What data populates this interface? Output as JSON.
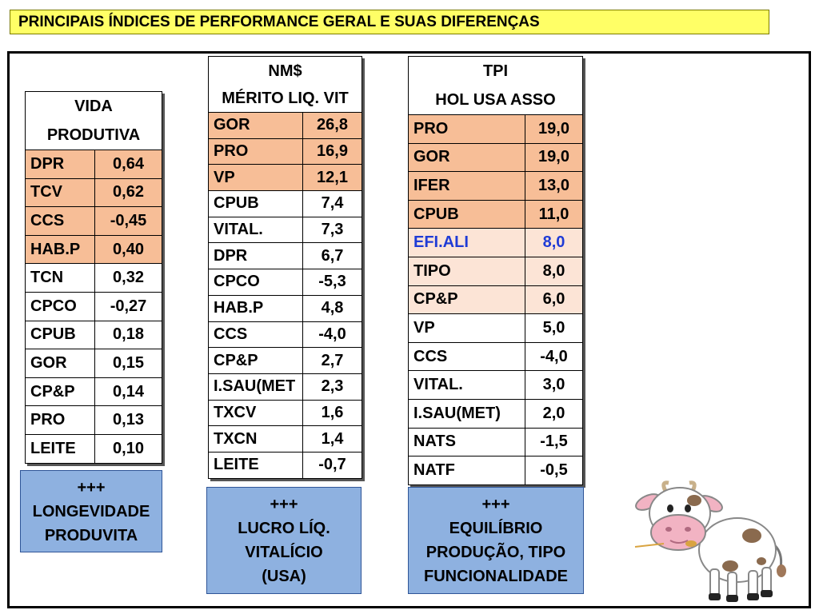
{
  "title": "PRINCIPAIS ÍNDICES DE PERFORMANCE GERAL E SUAS DIFERENÇAS",
  "tables": [
    {
      "header": [
        "VIDA",
        "PRODUTIVA"
      ],
      "rows": [
        {
          "label": "DPR",
          "value": "0,64",
          "highlight": "orange"
        },
        {
          "label": "TCV",
          "value": "0,62",
          "highlight": "orange"
        },
        {
          "label": "CCS",
          "value": "-0,45",
          "highlight": "orange"
        },
        {
          "label": "HAB.P",
          "value": "0,40",
          "highlight": "orange"
        },
        {
          "label": "TCN",
          "value": "0,32"
        },
        {
          "label": "CPCO",
          "value": "-0,27"
        },
        {
          "label": "CPUB",
          "value": "0,18"
        },
        {
          "label": "GOR",
          "value": "0,15"
        },
        {
          "label": "CP&P",
          "value": "0,14"
        },
        {
          "label": "PRO",
          "value": "0,13"
        },
        {
          "label": "LEITE",
          "value": "0,10"
        }
      ],
      "caption": [
        "+++",
        "LONGEVIDADE",
        "PRODUVITA"
      ]
    },
    {
      "header": [
        "NM$",
        "MÉRITO LIQ. VIT"
      ],
      "rows": [
        {
          "label": "GOR",
          "value": "26,8",
          "highlight": "orange"
        },
        {
          "label": "PRO",
          "value": "16,9",
          "highlight": "orange"
        },
        {
          "label": "VP",
          "value": "12,1",
          "highlight": "orange"
        },
        {
          "label": "CPUB",
          "value": "7,4"
        },
        {
          "label": "VITAL.",
          "value": "7,3"
        },
        {
          "label": "DPR",
          "value": "6,7"
        },
        {
          "label": "CPCO",
          "value": "-5,3"
        },
        {
          "label": "HAB.P",
          "value": "4,8"
        },
        {
          "label": "CCS",
          "value": "-4,0"
        },
        {
          "label": "CP&P",
          "value": "2,7"
        },
        {
          "label": "I.SAU(MET",
          "value": "2,3"
        },
        {
          "label": "TXCV",
          "value": "1,6"
        },
        {
          "label": "TXCN",
          "value": "1,4"
        },
        {
          "label": "LEITE",
          "value": "-0,7"
        }
      ],
      "caption": [
        "+++",
        "LUCRO LÍQ.",
        "VITALÍCIO",
        "(USA)"
      ]
    },
    {
      "header": [
        "TPI",
        "HOL USA ASSO"
      ],
      "rows": [
        {
          "label": "PRO",
          "value": "19,0",
          "highlight": "orange"
        },
        {
          "label": "GOR",
          "value": "19,0",
          "highlight": "orange"
        },
        {
          "label": "IFER",
          "value": "13,0",
          "highlight": "orange"
        },
        {
          "label": "CPUB",
          "value": "11,0",
          "highlight": "orange"
        },
        {
          "label": "EFI.ALI",
          "value": "8,0",
          "highlight": "light",
          "text_color": "#1f3bd6"
        },
        {
          "label": "TIPO",
          "value": "8,0",
          "highlight": "light"
        },
        {
          "label": "CP&P",
          "value": "6,0",
          "highlight": "light"
        },
        {
          "label": "VP",
          "value": "5,0"
        },
        {
          "label": "CCS",
          "value": "-4,0"
        },
        {
          "label": "VITAL.",
          "value": "3,0"
        },
        {
          "label": "I.SAU(MET)",
          "value": "2,0"
        },
        {
          "label": "NATS",
          "value": "-1,5"
        },
        {
          "label": "NATF",
          "value": "-0,5"
        }
      ],
      "caption": [
        "+++",
        "EQUILÍBRIO",
        "PRODUÇÃO, TIPO",
        "FUNCIONALIDADE"
      ]
    }
  ],
  "colors": {
    "title_background": "#ffff66",
    "highlight_orange": "#f7be97",
    "highlight_light": "#fce4d6",
    "caption_background": "#8eb1e0",
    "blue_text": "#1f3bd6"
  },
  "illustration": "cow-cartoon"
}
